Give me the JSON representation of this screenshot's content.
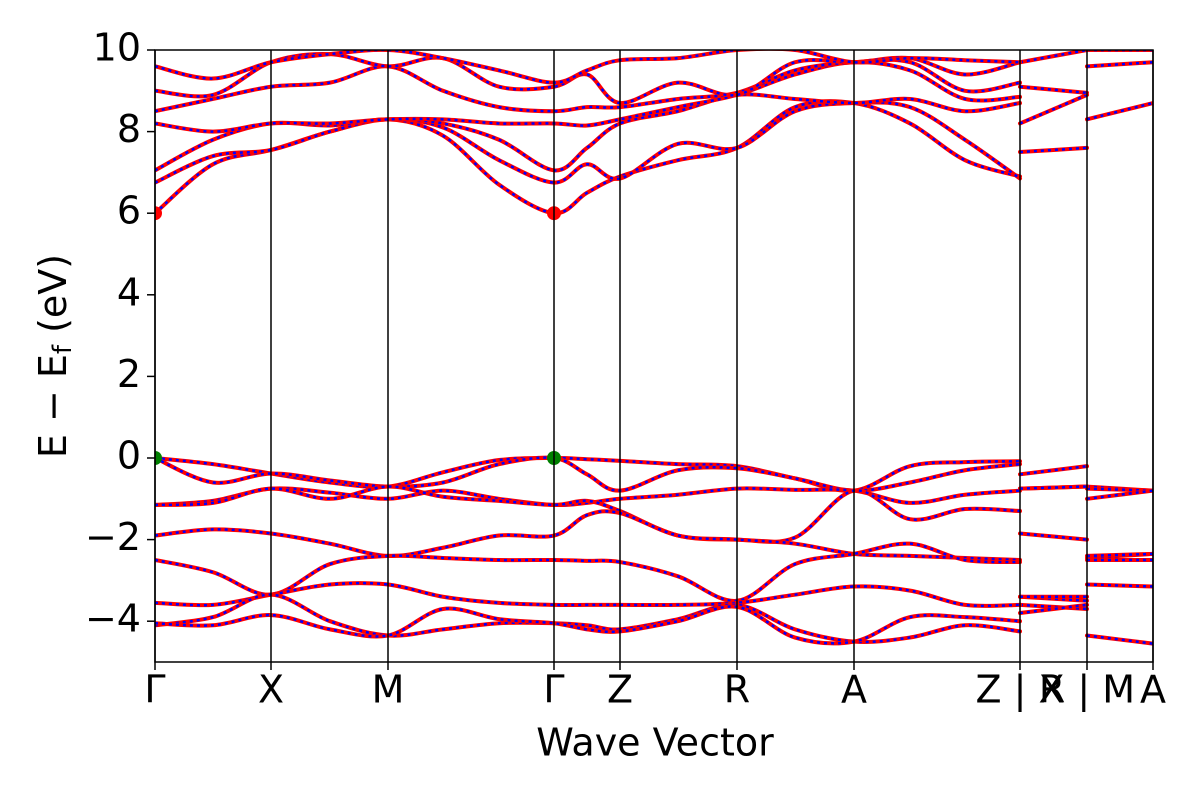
{
  "chart_data": {
    "type": "band-structure",
    "xlabel": "Wave Vector",
    "ylabel": {
      "text": "E − E",
      "subscript": "f",
      "unit": "(eV)"
    },
    "xlim": [
      0,
      9.98
    ],
    "ylim": [
      -5,
      10
    ],
    "xticks": [
      {
        "value": 0,
        "label": "Γ"
      },
      {
        "value": 1.16,
        "label": "X"
      },
      {
        "value": 2.33,
        "label": "M"
      },
      {
        "value": 3.99,
        "label": "Γ"
      },
      {
        "value": 4.65,
        "label": "Z"
      },
      {
        "value": 5.82,
        "label": "R"
      },
      {
        "value": 6.99,
        "label": "A"
      },
      {
        "value": 8.65,
        "label": "Z | X"
      },
      {
        "value": 9.32,
        "label": "R | M"
      },
      {
        "value": 9.98,
        "label": "A"
      }
    ],
    "yticks": [
      {
        "value": -4,
        "label": "−4"
      },
      {
        "value": -2,
        "label": "−2"
      },
      0,
      2,
      4,
      6,
      8,
      10
    ],
    "vlines": true,
    "overlay_color": "#0000ff",
    "x": [
      0,
      0.58,
      1.16,
      1.75,
      2.33,
      2.88,
      3.44,
      3.99,
      4.32,
      4.65,
      5.23,
      5.82,
      6.4,
      6.99,
      7.55,
      8.1,
      8.65,
      8.65,
      8.65,
      9.32,
      9.32,
      9.32,
      9.98
    ],
    "series": [
      {
        "color": "#ff0000",
        "values": [
          0,
          -0.15,
          -0.38,
          -0.6,
          -0.7,
          -0.35,
          -0.05,
          0,
          -0.03,
          -0.07,
          -0.15,
          -0.2,
          -0.5,
          -0.8,
          -0.2,
          -0.1,
          -0.08,
          null,
          -0.4,
          -0.2,
          null,
          -0.7,
          -0.8
        ]
      },
      {
        "color": "#ff0000",
        "values": [
          0,
          -0.6,
          -0.38,
          -0.55,
          -0.7,
          -0.6,
          -0.15,
          0,
          -0.4,
          -0.8,
          -0.3,
          -0.25,
          -0.5,
          -0.8,
          -0.6,
          -0.3,
          -0.15,
          null,
          -0.75,
          -0.7,
          null,
          -0.75,
          -0.8
        ]
      },
      {
        "color": "#ff0000",
        "values": [
          -1.15,
          -1.05,
          -0.75,
          -0.85,
          -1.0,
          -0.8,
          -1.0,
          -1.15,
          -1.1,
          -1.0,
          -0.9,
          -0.75,
          -0.78,
          -0.8,
          -1.1,
          -0.9,
          -0.8,
          null,
          -0.75,
          -0.7,
          null,
          -1.0,
          -0.8
        ]
      },
      {
        "color": "#ff0000",
        "values": [
          -1.15,
          -1.1,
          -0.75,
          -1.0,
          -0.7,
          -0.95,
          -1.05,
          -1.15,
          -1.05,
          -1.3,
          -1.9,
          -2.0,
          -1.95,
          -0.8,
          -1.5,
          -1.25,
          -1.3,
          null,
          -1.85,
          -2.0,
          null,
          -2.45,
          -2.35
        ]
      },
      {
        "color": "#ff0000",
        "values": [
          -1.9,
          -1.75,
          -1.85,
          -2.1,
          -2.4,
          -2.2,
          -1.9,
          -1.9,
          -1.4,
          -1.35,
          -1.9,
          -2.0,
          -2.1,
          -2.35,
          -2.4,
          -2.45,
          -2.5,
          null,
          -3.4,
          -3.5,
          null,
          -2.4,
          -2.35
        ]
      },
      {
        "color": "#ff0000",
        "values": [
          -2.5,
          -2.8,
          -3.35,
          -2.6,
          -2.4,
          -2.45,
          -2.5,
          -2.5,
          -2.52,
          -2.55,
          -2.9,
          -3.5,
          -2.6,
          -2.35,
          -2.1,
          -2.5,
          -2.55,
          null,
          -3.6,
          -3.7,
          null,
          -3.1,
          -3.15
        ]
      },
      {
        "color": "#ff0000",
        "values": [
          -3.55,
          -3.6,
          -3.35,
          -3.1,
          -3.1,
          -3.4,
          -3.55,
          -3.6,
          -3.6,
          -3.6,
          -3.6,
          -3.55,
          -3.35,
          -3.15,
          -3.25,
          -3.6,
          -3.6,
          null,
          -3.8,
          -3.6,
          null,
          -4.35,
          -4.55
        ]
      },
      {
        "color": "#ff0000",
        "values": [
          -4.1,
          -3.9,
          -3.35,
          -4.0,
          -4.35,
          -4.2,
          -4.05,
          -4.05,
          -4.1,
          -4.2,
          -3.95,
          -3.6,
          -4.2,
          -4.5,
          -4.4,
          -4.1,
          -4.25,
          null,
          -3.4,
          -3.4,
          null,
          -2.5,
          -2.5
        ]
      },
      {
        "color": "#ff0000",
        "values": [
          -4.05,
          -4.1,
          -3.85,
          -4.2,
          -4.35,
          -3.7,
          -3.95,
          -4.05,
          -4.2,
          -4.25,
          -4.0,
          -3.65,
          -4.4,
          -4.5,
          -3.9,
          -3.9,
          -4.0,
          null,
          null,
          null,
          null,
          null,
          null
        ]
      },
      {
        "color": "#ff0000",
        "values": [
          6.0,
          7.2,
          7.55,
          8.0,
          8.3,
          7.9,
          6.7,
          6.0,
          6.5,
          6.9,
          7.3,
          7.6,
          8.6,
          8.7,
          8.2,
          7.3,
          6.9,
          null,
          7.5,
          7.6,
          null,
          8.3,
          8.7
        ]
      },
      {
        "color": "#ff0000",
        "values": [
          6.75,
          7.4,
          7.55,
          8.0,
          8.3,
          8.1,
          7.3,
          6.75,
          7.2,
          6.85,
          7.7,
          7.6,
          8.5,
          8.7,
          8.6,
          7.8,
          6.85,
          null,
          8.2,
          8.9,
          null,
          9.6,
          9.7
        ]
      },
      {
        "color": "#ff0000",
        "values": [
          7.05,
          7.8,
          8.2,
          8.15,
          8.3,
          8.2,
          7.8,
          7.05,
          7.6,
          8.2,
          8.5,
          8.9,
          8.8,
          8.7,
          8.8,
          8.5,
          8.7,
          null,
          9.1,
          8.95,
          null,
          10.0,
          10.0
        ]
      },
      {
        "color": "#ff0000",
        "values": [
          8.2,
          8.0,
          8.2,
          8.2,
          8.3,
          8.3,
          8.2,
          8.2,
          8.15,
          8.3,
          8.6,
          8.9,
          9.4,
          9.7,
          9.5,
          8.8,
          8.85,
          null,
          9.7,
          10.0,
          null,
          null,
          null
        ]
      },
      {
        "color": "#ff0000",
        "values": [
          8.5,
          8.8,
          9.1,
          9.2,
          9.6,
          9.0,
          8.6,
          8.5,
          8.6,
          8.6,
          8.8,
          8.95,
          9.5,
          9.7,
          9.7,
          9.0,
          9.2,
          null,
          null,
          null,
          null,
          null,
          null
        ]
      },
      {
        "color": "#ff0000",
        "values": [
          9.0,
          8.9,
          9.7,
          9.9,
          9.6,
          9.8,
          9.1,
          9.1,
          9.4,
          8.7,
          9.2,
          8.9,
          9.7,
          9.7,
          9.8,
          9.4,
          9.7,
          null,
          null,
          null,
          null,
          null,
          null
        ]
      },
      {
        "color": "#ff0000",
        "values": [
          9.6,
          9.3,
          9.7,
          9.9,
          10.0,
          9.8,
          9.5,
          9.2,
          9.5,
          9.75,
          9.8,
          10.0,
          10.0,
          9.7,
          9.8,
          9.75,
          9.7,
          null,
          null,
          null,
          null,
          null,
          null
        ]
      }
    ],
    "markers": [
      {
        "x": 0,
        "y": 6,
        "color": "#ff0000"
      },
      {
        "x": 3.99,
        "y": 6,
        "color": "#ff0000"
      },
      {
        "x": 0,
        "y": 0,
        "color": "#008000"
      },
      {
        "x": 3.99,
        "y": 0,
        "color": "#008000"
      }
    ]
  }
}
